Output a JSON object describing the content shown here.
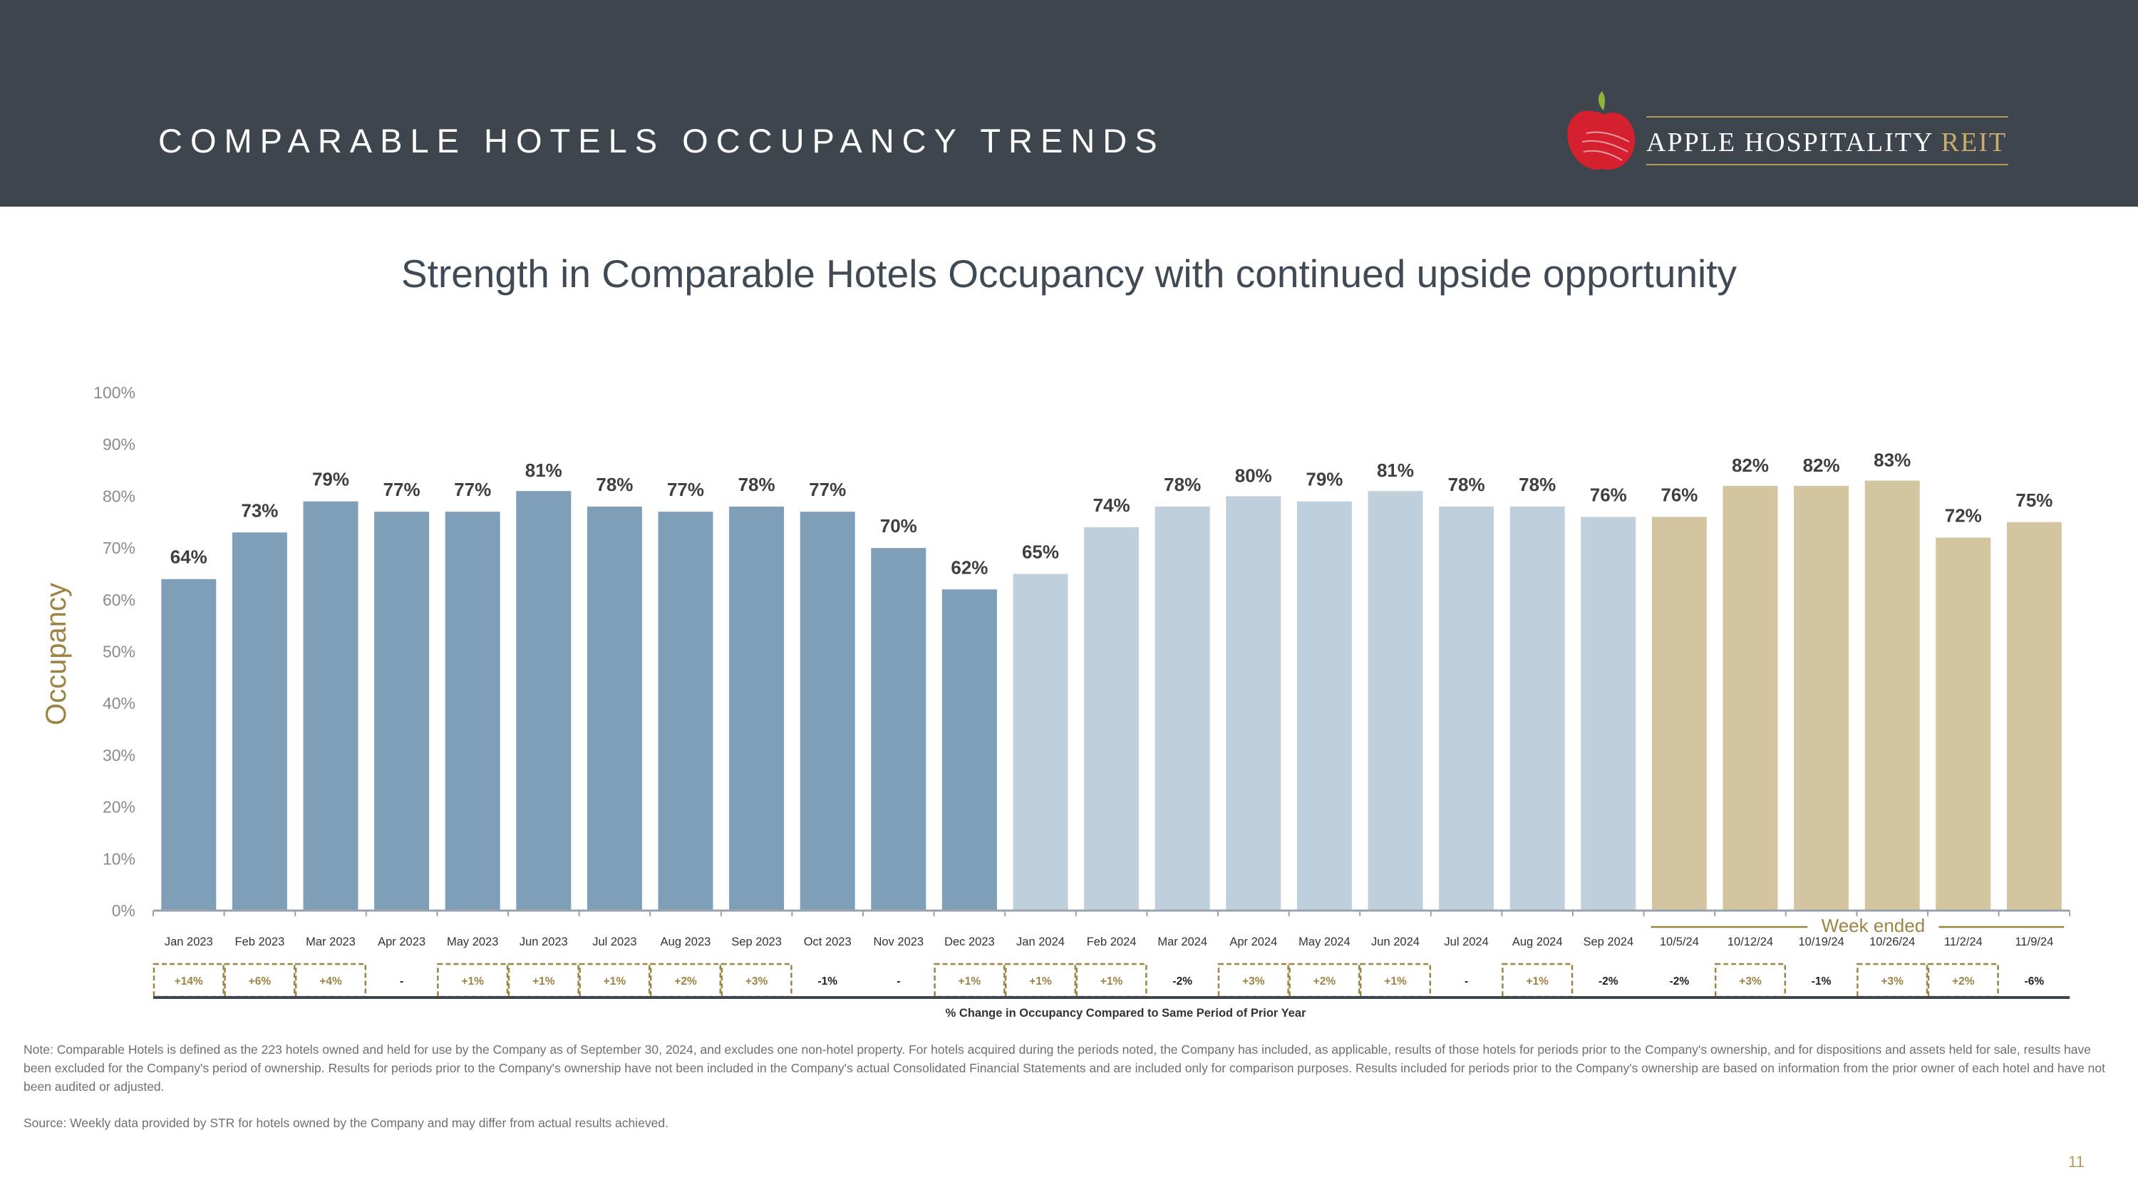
{
  "header": {
    "title": "COMPARABLE HOTELS OCCUPANCY TRENDS",
    "logo_text_main": "APPLE HOSPITALITY ",
    "logo_text_accent": "REIT"
  },
  "subtitle": "Strength in Comparable Hotels Occupancy with continued upside opportunity",
  "colors": {
    "header_bg": "#3e454d",
    "bar_2023": "#7f9fb8",
    "bar_2024": "#c0cfdc",
    "bar_weekly": "#d4c5a1",
    "gold_accent": "#9b8444",
    "logo_red": "#d4202f"
  },
  "chart_data": {
    "type": "bar",
    "ylabel": "Occupancy",
    "ylim": [
      0,
      100
    ],
    "yticks": [
      "0%",
      "10%",
      "20%",
      "30%",
      "40%",
      "50%",
      "60%",
      "70%",
      "80%",
      "90%",
      "100%"
    ],
    "categories": [
      "Jan 2023",
      "Feb 2023",
      "Mar 2023",
      "Apr 2023",
      "May 2023",
      "Jun 2023",
      "Jul 2023",
      "Aug 2023",
      "Sep 2023",
      "Oct 2023",
      "Nov 2023",
      "Dec 2023",
      "Jan 2024",
      "Feb 2024",
      "Mar 2024",
      "Apr 2024",
      "May 2024",
      "Jun 2024",
      "Jul 2024",
      "Aug 2024",
      "Sep 2024",
      "10/5/24",
      "10/12/24",
      "10/19/24",
      "10/26/24",
      "11/2/24",
      "11/9/24"
    ],
    "values": [
      64,
      73,
      79,
      77,
      77,
      81,
      78,
      77,
      78,
      77,
      70,
      62,
      65,
      74,
      78,
      80,
      79,
      81,
      78,
      78,
      76,
      76,
      82,
      82,
      83,
      72,
      75
    ],
    "value_labels": [
      "64%",
      "73%",
      "79%",
      "77%",
      "77%",
      "81%",
      "78%",
      "77%",
      "78%",
      "77%",
      "70%",
      "62%",
      "65%",
      "74%",
      "78%",
      "80%",
      "79%",
      "81%",
      "78%",
      "78%",
      "76%",
      "76%",
      "82%",
      "82%",
      "83%",
      "72%",
      "75%"
    ],
    "groups": [
      "2023",
      "2023",
      "2023",
      "2023",
      "2023",
      "2023",
      "2023",
      "2023",
      "2023",
      "2023",
      "2023",
      "2023",
      "2024",
      "2024",
      "2024",
      "2024",
      "2024",
      "2024",
      "2024",
      "2024",
      "2024",
      "weekly",
      "weekly",
      "weekly",
      "weekly",
      "weekly",
      "weekly"
    ],
    "week_ended_label": "Week ended",
    "changes": [
      "+14%",
      "+6%",
      "+4%",
      "-",
      "+1%",
      "+1%",
      "+1%",
      "+2%",
      "+3%",
      "-1%",
      "-",
      "+1%",
      "+1%",
      "+1%",
      "-2%",
      "+3%",
      "+2%",
      "+1%",
      "-",
      "+1%",
      "-2%",
      "-2%",
      "+3%",
      "-1%",
      "+3%",
      "+2%",
      "-6%"
    ],
    "change_boxed": [
      true,
      true,
      true,
      false,
      true,
      true,
      true,
      true,
      true,
      false,
      false,
      true,
      true,
      true,
      false,
      true,
      true,
      true,
      false,
      true,
      false,
      false,
      true,
      false,
      true,
      true,
      false
    ],
    "change_row_label": "% Change in Occupancy Compared to Same Period of Prior Year",
    "grid": false,
    "legend": "none"
  },
  "note": "Note: Comparable Hotels is defined as the 223 hotels owned and held for use by the Company as of September 30, 2024, and excludes one non-hotel property. For hotels acquired during the periods noted, the Company has included, as applicable, results of those hotels for periods prior to the Company's ownership, and for dispositions and assets held for sale, results have been excluded for the Company's period of ownership. Results for periods prior to the Company's ownership have not been included in the Company's actual Consolidated Financial Statements and are included only for comparison purposes. Results included for periods prior to the Company's ownership are based on information from the prior owner of each hotel and have not been audited or adjusted.",
  "source": "Source:  Weekly data provided by STR for hotels owned by the Company and may differ from actual results achieved.",
  "page_number": "11"
}
